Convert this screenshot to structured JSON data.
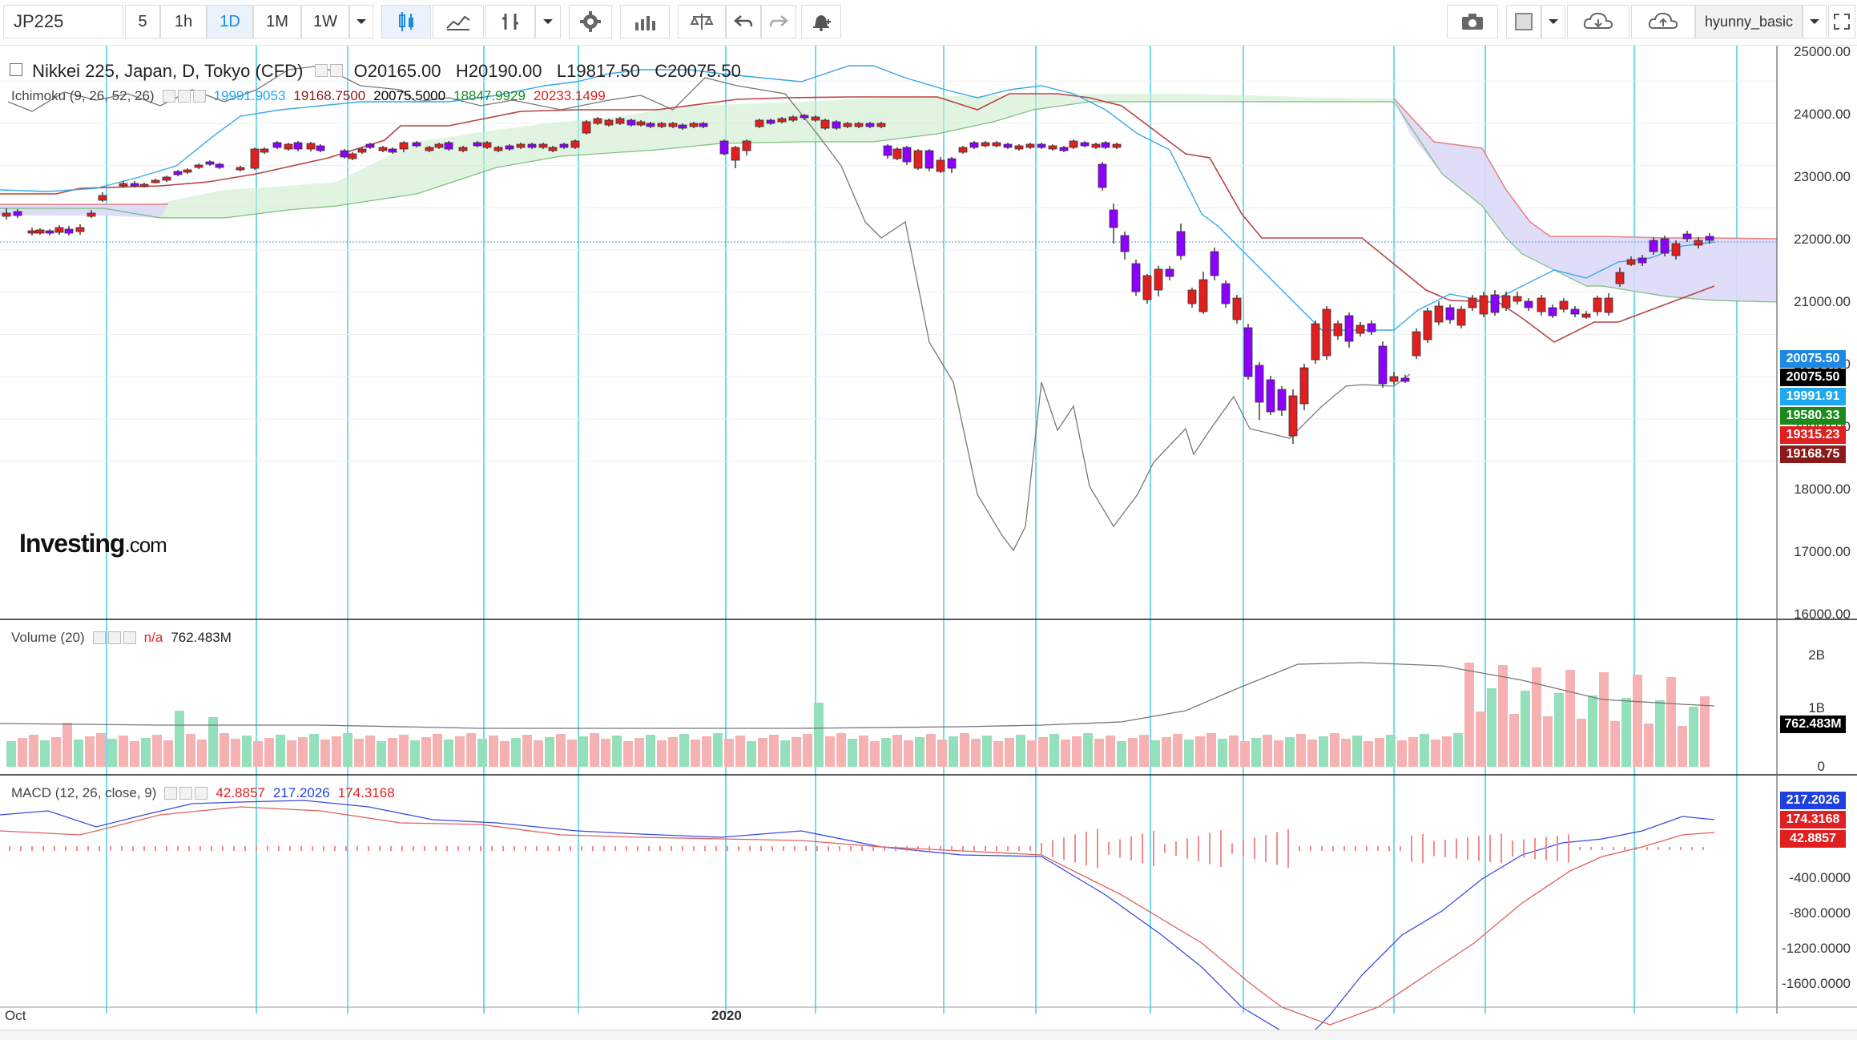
{
  "toolbar": {
    "symbol": "JP225",
    "intervals": [
      "5",
      "1h",
      "1D",
      "1M",
      "1W"
    ],
    "active_interval": "1D",
    "user": "hyunny_basic"
  },
  "main_legend": {
    "title": "Nikkei 225, Japan, D, Tokyo (CFD)",
    "open": "O20165.00",
    "high": "H20190.00",
    "low": "L19817.50",
    "close": "C20075.50"
  },
  "ichimoku_legend": {
    "label": "Ichimoku (9, 26, 52, 26)",
    "conversion": "19991.9053",
    "base": "19168.7500",
    "lagging": "20075.5000",
    "span_a": "18847.9929",
    "span_b": "20233.1499"
  },
  "volume_legend": {
    "label": "Volume (20)",
    "na": "n/a",
    "value": "762.483M"
  },
  "macd_legend": {
    "label": "MACD (12, 26, close, 9)",
    "histogram": "42.8857",
    "macd": "217.2026",
    "signal": "174.3168"
  },
  "price_axis": [
    "25000.00",
    "24000.00",
    "23000.00",
    "22000.00",
    "21000.00",
    "20000.00",
    "19000.00",
    "18000.00",
    "17000.00",
    "16000.00"
  ],
  "price_tags": [
    {
      "text": "20075.50",
      "color": "#1e88e5"
    },
    {
      "text": "20075.50",
      "color": "#000000"
    },
    {
      "text": "19991.91",
      "color": "#1ea7ee"
    },
    {
      "text": "19580.33",
      "color": "#1b8a1b"
    },
    {
      "text": "19315.23",
      "color": "#e02020"
    },
    {
      "text": "19168.75",
      "color": "#8b1a1a"
    }
  ],
  "volume_axis": [
    "2B",
    "1B",
    "0"
  ],
  "volume_tag": "762.483M",
  "macd_axis": [
    "-400.0000",
    "-800.0000",
    "-1200.0000",
    "-1600.0000"
  ],
  "macd_tags": [
    {
      "text": "217.2026",
      "color": "#1f3fe0"
    },
    {
      "text": "174.3168",
      "color": "#e02020"
    },
    {
      "text": "42.8857",
      "color": "#e02020"
    }
  ],
  "x_axis": {
    "start": "Oct",
    "year": "2020"
  },
  "logo": {
    "brand": "Investing",
    "suffix": ".com"
  },
  "colors": {
    "bull": "#e02020",
    "bear": "#8b00ff",
    "vol_up": "#f6b2b2",
    "vol_down": "#94e0bb",
    "gridline": "#4fd3e6"
  }
}
